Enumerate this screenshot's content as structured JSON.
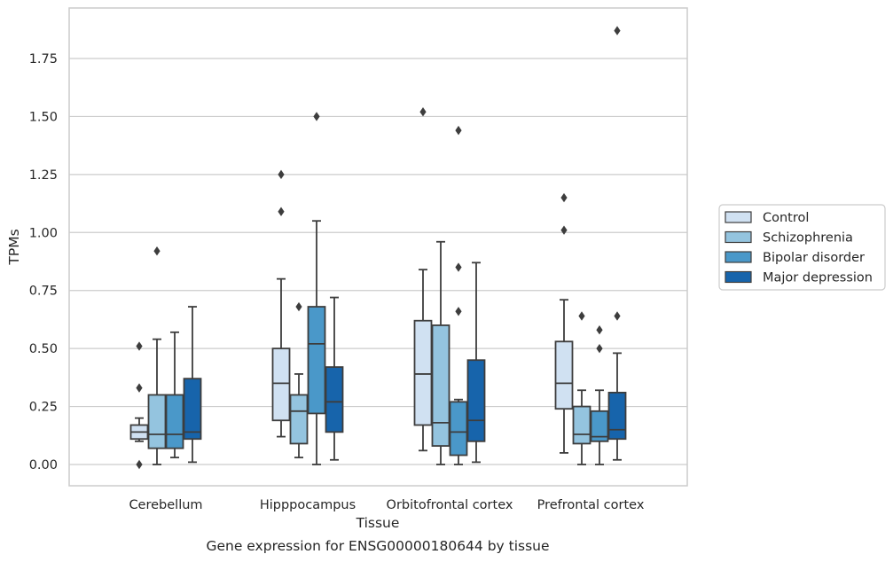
{
  "chart_data": {
    "type": "box",
    "title": "",
    "caption": "Gene expression for ENSG00000180644 by tissue",
    "xlabel": "Tissue",
    "ylabel": "TPMs",
    "ylim": [
      -0.09,
      1.97
    ],
    "yticks": [
      0.0,
      0.25,
      0.5,
      0.75,
      1.0,
      1.25,
      1.5,
      1.75
    ],
    "ytick_labels": [
      "0.00",
      "0.25",
      "0.50",
      "0.75",
      "1.00",
      "1.25",
      "1.50",
      "1.75"
    ],
    "grid": "horizontal",
    "legend_placement": "right",
    "categories": [
      "Cerebellum",
      "Hipppocampus",
      "Orbitofrontal cortex",
      "Prefrontal cortex"
    ],
    "series": [
      {
        "name": "Control",
        "color": "#d0e1f2",
        "boxes": [
          {
            "whislo": 0.1,
            "q1": 0.11,
            "med": 0.14,
            "q3": 0.17,
            "whishi": 0.2,
            "fliers": [
              0.51,
              0.33,
              0.0
            ]
          },
          {
            "whislo": 0.12,
            "q1": 0.19,
            "med": 0.35,
            "q3": 0.5,
            "whishi": 0.8,
            "fliers": [
              1.25,
              1.09
            ]
          },
          {
            "whislo": 0.06,
            "q1": 0.17,
            "med": 0.39,
            "q3": 0.62,
            "whishi": 0.84,
            "fliers": [
              1.52
            ]
          },
          {
            "whislo": 0.05,
            "q1": 0.24,
            "med": 0.35,
            "q3": 0.53,
            "whishi": 0.71,
            "fliers": [
              1.15,
              1.01
            ]
          }
        ]
      },
      {
        "name": "Schizophrenia",
        "color": "#94c4df",
        "boxes": [
          {
            "whislo": 0.0,
            "q1": 0.07,
            "med": 0.13,
            "q3": 0.3,
            "whishi": 0.54,
            "fliers": [
              0.92
            ]
          },
          {
            "whislo": 0.03,
            "q1": 0.09,
            "med": 0.23,
            "q3": 0.3,
            "whishi": 0.39,
            "fliers": [
              0.68
            ]
          },
          {
            "whislo": 0.0,
            "q1": 0.08,
            "med": 0.18,
            "q3": 0.6,
            "whishi": 0.96,
            "fliers": []
          },
          {
            "whislo": 0.0,
            "q1": 0.09,
            "med": 0.13,
            "q3": 0.25,
            "whishi": 0.32,
            "fliers": [
              0.64
            ]
          }
        ]
      },
      {
        "name": "Bipolar disorder",
        "color": "#4a98c9",
        "boxes": [
          {
            "whislo": 0.03,
            "q1": 0.07,
            "med": 0.13,
            "q3": 0.3,
            "whishi": 0.57,
            "fliers": []
          },
          {
            "whislo": 0.0,
            "q1": 0.22,
            "med": 0.52,
            "q3": 0.68,
            "whishi": 1.05,
            "fliers": [
              1.5
            ]
          },
          {
            "whislo": 0.0,
            "q1": 0.04,
            "med": 0.14,
            "q3": 0.27,
            "whishi": 0.28,
            "fliers": [
              0.85,
              0.66,
              1.44
            ]
          },
          {
            "whislo": 0.0,
            "q1": 0.1,
            "med": 0.12,
            "q3": 0.23,
            "whishi": 0.32,
            "fliers": [
              0.58,
              0.5
            ]
          }
        ]
      },
      {
        "name": "Major depression",
        "color": "#1764ab",
        "boxes": [
          {
            "whislo": 0.01,
            "q1": 0.11,
            "med": 0.14,
            "q3": 0.37,
            "whishi": 0.68,
            "fliers": []
          },
          {
            "whislo": 0.02,
            "q1": 0.14,
            "med": 0.27,
            "q3": 0.42,
            "whishi": 0.72,
            "fliers": []
          },
          {
            "whislo": 0.01,
            "q1": 0.1,
            "med": 0.19,
            "q3": 0.45,
            "whishi": 0.87,
            "fliers": []
          },
          {
            "whislo": 0.02,
            "q1": 0.11,
            "med": 0.15,
            "q3": 0.31,
            "whishi": 0.48,
            "fliers": [
              0.64,
              1.87
            ]
          }
        ]
      }
    ],
    "colors": {
      "grid": "#cccccc",
      "frame": "#cccccc",
      "box_edge": "#3d3d3d",
      "text": "#262626"
    }
  }
}
